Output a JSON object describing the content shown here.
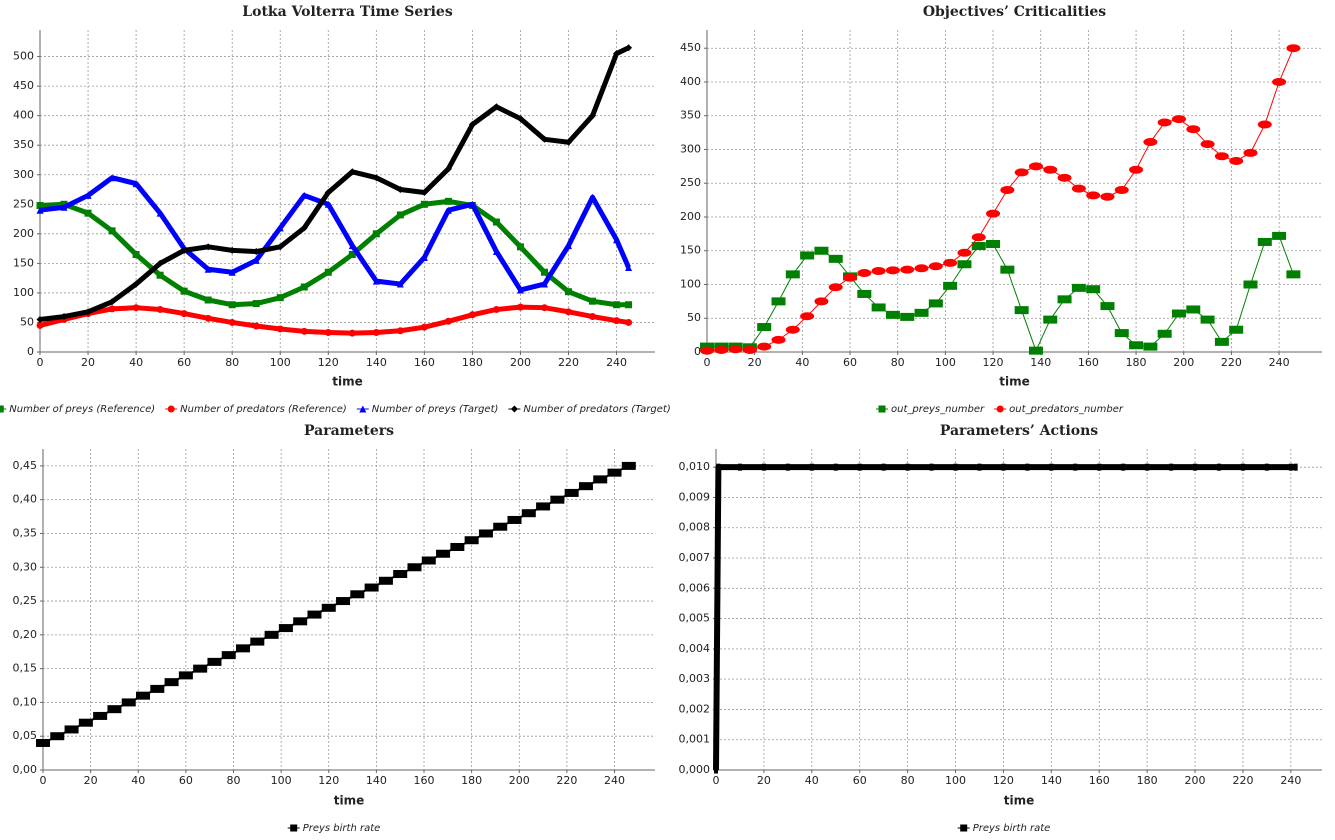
{
  "chart_data": [
    {
      "type": "line",
      "title": "Lotka Volterra Time Series",
      "x_label": "time",
      "x": [
        0,
        10,
        20,
        30,
        40,
        50,
        60,
        70,
        80,
        90,
        100,
        110,
        120,
        130,
        140,
        150,
        160,
        170,
        180,
        190,
        200,
        210,
        220,
        230,
        240,
        245
      ],
      "series": [
        {
          "name": "Number of preys (Reference)",
          "color": "#008000",
          "marker": "square",
          "values": [
            248,
            250,
            235,
            205,
            165,
            130,
            103,
            88,
            80,
            82,
            92,
            110,
            135,
            165,
            200,
            232,
            250,
            255,
            248,
            220,
            178,
            135,
            102,
            86,
            80,
            80
          ]
        },
        {
          "name": "Number of predators (Reference)",
          "color": "#ff0000",
          "marker": "circle",
          "values": [
            45,
            55,
            65,
            73,
            75,
            72,
            65,
            57,
            50,
            44,
            39,
            35,
            33,
            32,
            33,
            36,
            42,
            52,
            63,
            72,
            76,
            75,
            68,
            60,
            53,
            50
          ]
        },
        {
          "name": "Number of preys (Target)",
          "color": "#0000ff",
          "marker": "triangle",
          "values": [
            240,
            245,
            265,
            295,
            285,
            235,
            175,
            140,
            135,
            155,
            210,
            265,
            250,
            180,
            120,
            115,
            160,
            240,
            250,
            170,
            105,
            115,
            180,
            262,
            190,
            143
          ]
        },
        {
          "name": "Number of predators (Target)",
          "color": "#000000",
          "marker": "diamond",
          "values": [
            55,
            60,
            68,
            85,
            115,
            150,
            172,
            178,
            172,
            170,
            178,
            210,
            270,
            305,
            295,
            275,
            270,
            310,
            385,
            415,
            395,
            360,
            355,
            400,
            505,
            515
          ]
        }
      ],
      "xlim": [
        0,
        256
      ],
      "ylim": [
        0,
        545
      ],
      "xticks": [
        0,
        20,
        40,
        60,
        80,
        100,
        120,
        140,
        160,
        180,
        200,
        220,
        240
      ],
      "yticks": [
        0,
        50,
        100,
        150,
        200,
        250,
        300,
        350,
        400,
        450,
        500
      ],
      "grid": true
    },
    {
      "type": "line",
      "title": "Objectives’ Criticalities",
      "x_label": "time",
      "x": [
        0,
        6,
        12,
        18,
        24,
        30,
        36,
        42,
        48,
        54,
        60,
        66,
        72,
        78,
        84,
        90,
        96,
        102,
        108,
        114,
        120,
        126,
        132,
        138,
        144,
        150,
        156,
        162,
        168,
        174,
        180,
        186,
        192,
        198,
        204,
        210,
        216,
        222,
        228,
        234,
        240,
        246
      ],
      "series": [
        {
          "name": "out_preys_number",
          "color": "#008000",
          "marker": "square",
          "values": [
            8,
            8,
            8,
            7,
            37,
            75,
            115,
            143,
            150,
            138,
            112,
            86,
            66,
            55,
            52,
            58,
            72,
            98,
            130,
            157,
            160,
            122,
            62,
            2,
            48,
            78,
            95,
            93,
            68,
            28,
            10,
            8,
            27,
            57,
            63,
            48,
            15,
            33,
            100,
            163,
            172,
            115
          ]
        },
        {
          "name": "out_predators_number",
          "color": "#ff0000",
          "marker": "circle",
          "values": [
            2,
            3,
            4,
            3,
            8,
            18,
            33,
            53,
            75,
            96,
            110,
            117,
            120,
            121,
            122,
            124,
            127,
            132,
            147,
            170,
            205,
            240,
            266,
            275,
            270,
            258,
            242,
            232,
            230,
            240,
            270,
            311,
            340,
            345,
            330,
            308,
            290,
            283,
            295,
            337,
            400,
            450
          ]
        }
      ],
      "xlim": [
        0,
        258
      ],
      "ylim": [
        0,
        477
      ],
      "xticks": [
        0,
        20,
        40,
        60,
        80,
        100,
        120,
        140,
        160,
        180,
        200,
        220,
        240
      ],
      "yticks": [
        0,
        50,
        100,
        150,
        200,
        250,
        300,
        350,
        400,
        450
      ],
      "grid": true
    },
    {
      "type": "line",
      "title": "Parameters",
      "x_label": "time",
      "x": [
        0,
        6,
        12,
        18,
        24,
        30,
        36,
        42,
        48,
        54,
        60,
        66,
        72,
        78,
        84,
        90,
        96,
        102,
        108,
        114,
        120,
        126,
        132,
        138,
        144,
        150,
        156,
        162,
        168,
        174,
        180,
        186,
        192,
        198,
        204,
        210,
        216,
        222,
        228,
        234,
        240,
        246
      ],
      "series": [
        {
          "name": "Preys birth rate",
          "color": "#000000",
          "marker": "square",
          "values": [
            0.04,
            0.05,
            0.06,
            0.07,
            0.08,
            0.09,
            0.1,
            0.11,
            0.12,
            0.13,
            0.14,
            0.15,
            0.16,
            0.17,
            0.18,
            0.19,
            0.2,
            0.21,
            0.22,
            0.23,
            0.24,
            0.25,
            0.26,
            0.27,
            0.28,
            0.29,
            0.3,
            0.31,
            0.32,
            0.33,
            0.34,
            0.35,
            0.36,
            0.37,
            0.38,
            0.39,
            0.4,
            0.41,
            0.42,
            0.43,
            0.44,
            0.45
          ]
        }
      ],
      "xlim": [
        0,
        257
      ],
      "ylim": [
        0,
        0.475
      ],
      "xticks": [
        0,
        20,
        40,
        60,
        80,
        100,
        120,
        140,
        160,
        180,
        200,
        220,
        240
      ],
      "yticks": [
        {
          "value": 0,
          "label": "0,00"
        },
        {
          "value": 0.05,
          "label": "0,05"
        },
        {
          "value": 0.1,
          "label": "0,10"
        },
        {
          "value": 0.15,
          "label": "0,15"
        },
        {
          "value": 0.2,
          "label": "0,20"
        },
        {
          "value": 0.25,
          "label": "0,25"
        },
        {
          "value": 0.3,
          "label": "0,30"
        },
        {
          "value": 0.35,
          "label": "0,35"
        },
        {
          "value": 0.4,
          "label": "0,40"
        },
        {
          "value": 0.45,
          "label": "0,45"
        }
      ],
      "grid": true
    },
    {
      "type": "line",
      "title": "Parameters’ Actions",
      "x_label": "time",
      "x": [
        0,
        1,
        10,
        20,
        30,
        40,
        50,
        60,
        70,
        80,
        90,
        100,
        110,
        120,
        130,
        140,
        150,
        160,
        170,
        180,
        190,
        200,
        210,
        220,
        230,
        240,
        242
      ],
      "series": [
        {
          "name": "Preys birth rate",
          "color": "#000000",
          "marker": "square",
          "values": [
            0,
            0.01,
            0.01,
            0.01,
            0.01,
            0.01,
            0.01,
            0.01,
            0.01,
            0.01,
            0.01,
            0.01,
            0.01,
            0.01,
            0.01,
            0.01,
            0.01,
            0.01,
            0.01,
            0.01,
            0.01,
            0.01,
            0.01,
            0.01,
            0.01,
            0.01,
            0.01
          ]
        }
      ],
      "xlim": [
        0,
        253
      ],
      "ylim": [
        0,
        0.0106
      ],
      "xticks": [
        0,
        20,
        40,
        60,
        80,
        100,
        120,
        140,
        160,
        180,
        200,
        220,
        240
      ],
      "yticks": [
        {
          "value": 0,
          "label": "0,000"
        },
        {
          "value": 0.001,
          "label": "0,001"
        },
        {
          "value": 0.002,
          "label": "0,002"
        },
        {
          "value": 0.003,
          "label": "0,003"
        },
        {
          "value": 0.004,
          "label": "0,004"
        },
        {
          "value": 0.005,
          "label": "0,005"
        },
        {
          "value": 0.006,
          "label": "0,006"
        },
        {
          "value": 0.007,
          "label": "0,007"
        },
        {
          "value": 0.008,
          "label": "0,008"
        },
        {
          "value": 0.009,
          "label": "0,009"
        },
        {
          "value": 0.01,
          "label": "0,010"
        }
      ],
      "grid": true
    }
  ]
}
